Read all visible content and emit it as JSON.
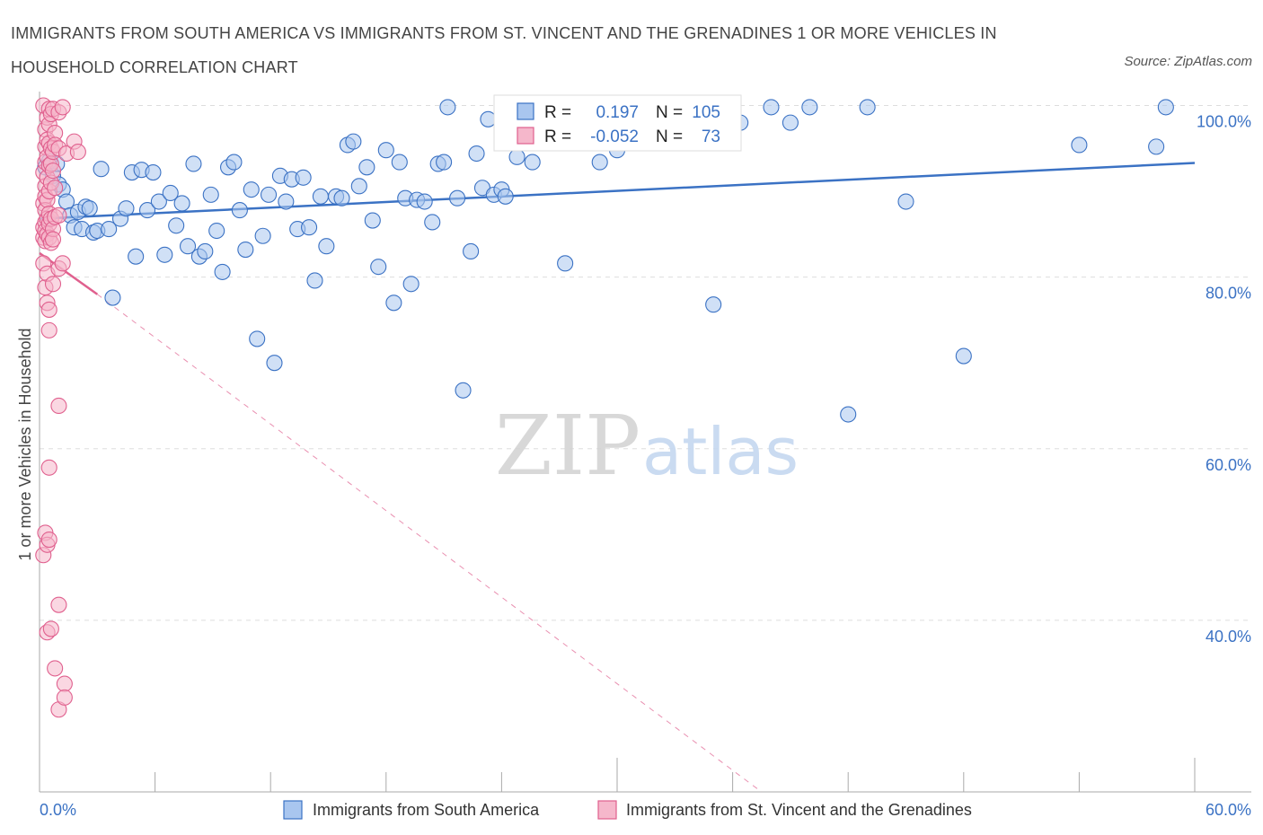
{
  "title": "IMMIGRANTS FROM SOUTH AMERICA VS IMMIGRANTS FROM ST. VINCENT AND THE GRENADINES 1 OR MORE VEHICLES IN HOUSEHOLD CORRELATION CHART",
  "source": "Source: ZipAtlas.com",
  "watermark": {
    "zip": "ZIP",
    "atlas": "atlas"
  },
  "colors": {
    "blue": "#3b72c4",
    "blue_fill": "#a9c6ef",
    "pink": "#e0608e",
    "pink_fill": "#f5b7cb",
    "grid": "#dddddd"
  },
  "chart_data": {
    "type": "scatter",
    "ylabel": "1 or more Vehicles in Household",
    "xlim": [
      0,
      60
    ],
    "ylim": [
      20,
      102
    ],
    "x_tick_labels": {
      "left": "0.0%",
      "right": "60.0%"
    },
    "y_ticks": [
      {
        "value": 100,
        "label": "100.0%"
      },
      {
        "value": 80,
        "label": "80.0%"
      },
      {
        "value": 60,
        "label": "60.0%"
      },
      {
        "value": 40,
        "label": "40.0%"
      }
    ],
    "legend": {
      "stats": [
        {
          "r_label": "R =",
          "r": "0.197",
          "n_label": "N =",
          "n": "105"
        },
        {
          "r_label": "R =",
          "r": "-0.052",
          "n_label": "N =",
          "n": "73"
        }
      ]
    },
    "series": [
      {
        "name": "Immigrants from South America",
        "color": "#3b72c4",
        "trend": {
          "x": [
            0,
            60
          ],
          "y": [
            86.8,
            93.3
          ],
          "style": "solid"
        },
        "points": [
          [
            0.3,
            92.8
          ],
          [
            0.5,
            93.5
          ],
          [
            0.7,
            91.8
          ],
          [
            0.9,
            93.2
          ],
          [
            1.0,
            90.8
          ],
          [
            1.2,
            90.2
          ],
          [
            1.4,
            88.8
          ],
          [
            1.6,
            87.2
          ],
          [
            1.8,
            85.8
          ],
          [
            2.0,
            87.6
          ],
          [
            2.2,
            85.6
          ],
          [
            2.4,
            88.2
          ],
          [
            2.6,
            88.0
          ],
          [
            2.8,
            85.2
          ],
          [
            3.0,
            85.4
          ],
          [
            3.2,
            92.6
          ],
          [
            3.6,
            85.6
          ],
          [
            3.8,
            77.6
          ],
          [
            4.2,
            86.8
          ],
          [
            4.5,
            88.0
          ],
          [
            4.8,
            92.2
          ],
          [
            5.0,
            82.4
          ],
          [
            5.3,
            92.5
          ],
          [
            5.6,
            87.8
          ],
          [
            5.9,
            92.2
          ],
          [
            6.2,
            88.8
          ],
          [
            6.5,
            82.6
          ],
          [
            6.8,
            89.8
          ],
          [
            7.1,
            86.0
          ],
          [
            7.4,
            88.6
          ],
          [
            7.7,
            83.6
          ],
          [
            8.0,
            93.2
          ],
          [
            8.3,
            82.4
          ],
          [
            8.6,
            83.0
          ],
          [
            8.9,
            89.6
          ],
          [
            9.2,
            85.4
          ],
          [
            9.5,
            80.6
          ],
          [
            9.8,
            92.8
          ],
          [
            10.1,
            93.4
          ],
          [
            10.4,
            87.8
          ],
          [
            10.7,
            83.2
          ],
          [
            11.0,
            90.2
          ],
          [
            11.3,
            72.8
          ],
          [
            11.6,
            84.8
          ],
          [
            11.9,
            89.6
          ],
          [
            12.2,
            70.0
          ],
          [
            12.5,
            91.8
          ],
          [
            12.8,
            88.8
          ],
          [
            13.1,
            91.4
          ],
          [
            13.4,
            85.6
          ],
          [
            13.7,
            91.6
          ],
          [
            14.0,
            85.8
          ],
          [
            14.3,
            79.6
          ],
          [
            14.6,
            89.4
          ],
          [
            14.9,
            83.6
          ],
          [
            15.4,
            89.4
          ],
          [
            15.7,
            89.2
          ],
          [
            16.0,
            95.4
          ],
          [
            16.3,
            95.8
          ],
          [
            16.6,
            90.6
          ],
          [
            17.0,
            92.8
          ],
          [
            17.3,
            86.6
          ],
          [
            17.6,
            81.2
          ],
          [
            18.0,
            94.8
          ],
          [
            18.4,
            77.0
          ],
          [
            18.7,
            93.4
          ],
          [
            19.0,
            89.2
          ],
          [
            19.3,
            79.2
          ],
          [
            19.6,
            89.0
          ],
          [
            20.0,
            88.8
          ],
          [
            20.4,
            86.4
          ],
          [
            20.7,
            93.2
          ],
          [
            21.0,
            93.4
          ],
          [
            21.2,
            99.8
          ],
          [
            21.7,
            89.2
          ],
          [
            22.0,
            66.8
          ],
          [
            22.4,
            83.0
          ],
          [
            22.7,
            94.4
          ],
          [
            23.0,
            90.4
          ],
          [
            23.3,
            98.4
          ],
          [
            23.6,
            89.6
          ],
          [
            24.0,
            90.2
          ],
          [
            24.2,
            89.4
          ],
          [
            24.8,
            94.0
          ],
          [
            25.3,
            97.8
          ],
          [
            25.6,
            93.4
          ],
          [
            26.4,
            97.8
          ],
          [
            27.3,
            81.6
          ],
          [
            29.1,
            93.4
          ],
          [
            30.0,
            94.8
          ],
          [
            31.0,
            98.4
          ],
          [
            32.0,
            97.6
          ],
          [
            33.0,
            99.8
          ],
          [
            35.0,
            76.8
          ],
          [
            36.4,
            98.0
          ],
          [
            38.0,
            99.8
          ],
          [
            39.0,
            98.0
          ],
          [
            40.0,
            99.8
          ],
          [
            42.0,
            64.0
          ],
          [
            43.0,
            99.8
          ],
          [
            45.0,
            88.8
          ],
          [
            48.0,
            70.8
          ],
          [
            54.0,
            95.4
          ],
          [
            58.0,
            95.2
          ],
          [
            58.5,
            99.8
          ]
        ]
      },
      {
        "name": "Immigrants from St. Vincent and the Grenadines",
        "color": "#e0608e",
        "trend": {
          "x": [
            0,
            3
          ],
          "y": [
            82.8,
            78.0
          ],
          "style": "solid"
        },
        "trend_ext": {
          "x": [
            3,
            37.5
          ],
          "y": [
            78.0,
            20.0
          ],
          "style": "dashed"
        },
        "points": [
          [
            0.2,
            100
          ],
          [
            0.2,
            92.2
          ],
          [
            0.2,
            88.6
          ],
          [
            0.2,
            85.8
          ],
          [
            0.2,
            84.6
          ],
          [
            0.2,
            81.6
          ],
          [
            0.2,
            47.6
          ],
          [
            0.3,
            97.2
          ],
          [
            0.3,
            95.2
          ],
          [
            0.3,
            93.4
          ],
          [
            0.3,
            90.6
          ],
          [
            0.3,
            89.4
          ],
          [
            0.3,
            87.8
          ],
          [
            0.3,
            86.4
          ],
          [
            0.3,
            85.4
          ],
          [
            0.3,
            84.2
          ],
          [
            0.3,
            78.8
          ],
          [
            0.3,
            50.2
          ],
          [
            0.4,
            98.6
          ],
          [
            0.4,
            96.0
          ],
          [
            0.4,
            94.0
          ],
          [
            0.4,
            91.6
          ],
          [
            0.4,
            89.0
          ],
          [
            0.4,
            86.8
          ],
          [
            0.4,
            85.0
          ],
          [
            0.4,
            80.4
          ],
          [
            0.4,
            77.0
          ],
          [
            0.4,
            48.8
          ],
          [
            0.4,
            38.6
          ],
          [
            0.5,
            99.6
          ],
          [
            0.5,
            97.8
          ],
          [
            0.5,
            95.6
          ],
          [
            0.5,
            93.0
          ],
          [
            0.5,
            90.0
          ],
          [
            0.5,
            87.4
          ],
          [
            0.5,
            86.2
          ],
          [
            0.5,
            84.6
          ],
          [
            0.5,
            76.2
          ],
          [
            0.5,
            73.8
          ],
          [
            0.5,
            57.8
          ],
          [
            0.5,
            49.4
          ],
          [
            0.6,
            99.0
          ],
          [
            0.6,
            95.0
          ],
          [
            0.6,
            93.2
          ],
          [
            0.6,
            91.0
          ],
          [
            0.6,
            86.8
          ],
          [
            0.6,
            84.0
          ],
          [
            0.6,
            39.0
          ],
          [
            0.7,
            99.6
          ],
          [
            0.7,
            94.6
          ],
          [
            0.7,
            92.4
          ],
          [
            0.7,
            85.6
          ],
          [
            0.7,
            84.4
          ],
          [
            0.7,
            79.2
          ],
          [
            0.8,
            96.8
          ],
          [
            0.8,
            95.4
          ],
          [
            0.8,
            90.4
          ],
          [
            0.8,
            87.0
          ],
          [
            0.8,
            34.4
          ],
          [
            1.0,
            99.2
          ],
          [
            1.0,
            95.0
          ],
          [
            1.0,
            87.2
          ],
          [
            1.0,
            81.0
          ],
          [
            1.0,
            65.0
          ],
          [
            1.0,
            41.8
          ],
          [
            1.0,
            29.6
          ],
          [
            1.2,
            99.8
          ],
          [
            1.2,
            81.6
          ],
          [
            1.3,
            32.6
          ],
          [
            1.3,
            31.0
          ],
          [
            1.4,
            94.4
          ],
          [
            1.8,
            95.8
          ],
          [
            2.0,
            94.6
          ]
        ]
      }
    ]
  }
}
